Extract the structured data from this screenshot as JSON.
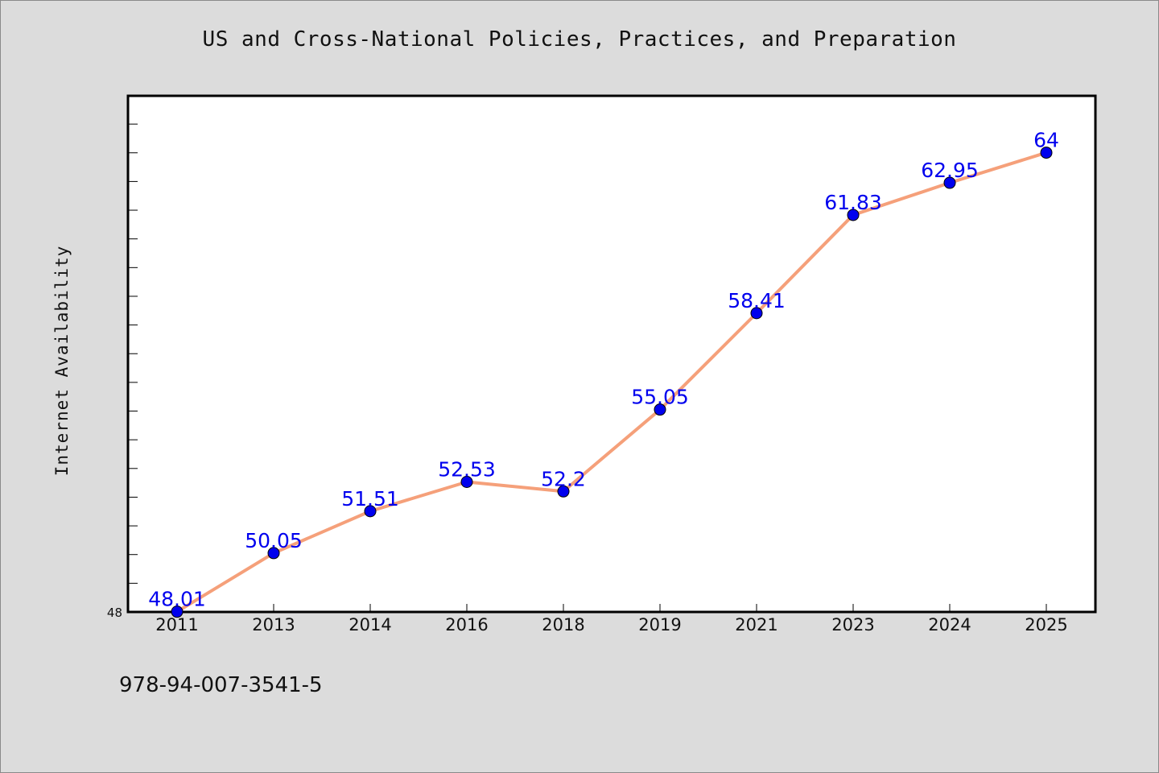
{
  "header": {
    "title": "US and Cross-National Policies, Practices, and Preparation"
  },
  "footer": {
    "isbn": "978-94-007-3541-5"
  },
  "chart_data": {
    "type": "line",
    "title": "US and Cross-National Policies, Practices, and Preparation",
    "xlabel": "",
    "ylabel": "Internet Availability",
    "categories": [
      "2011",
      "2013",
      "2014",
      "2016",
      "2018",
      "2019",
      "2021",
      "2023",
      "2024",
      "2025"
    ],
    "series": [
      {
        "values": [
          48.01,
          50.05,
          51.51,
          52.53,
          52.2,
          55.05,
          58.41,
          61.83,
          62.95,
          64
        ]
      }
    ],
    "data_labels": [
      "48.01",
      "50.05",
      "51.51",
      "52.53",
      "52.2",
      "55.05",
      "58.41",
      "61.83",
      "62.95",
      "64"
    ],
    "y_min_label": "48",
    "ylim": [
      48,
      65.98
    ],
    "grid": false,
    "legend": "none",
    "colors": {
      "line": "#f5a07a",
      "marker": "#0000ee",
      "data_label": "#0000ee",
      "background": "#dcdcdc",
      "plot_background": "#ffffff"
    }
  }
}
